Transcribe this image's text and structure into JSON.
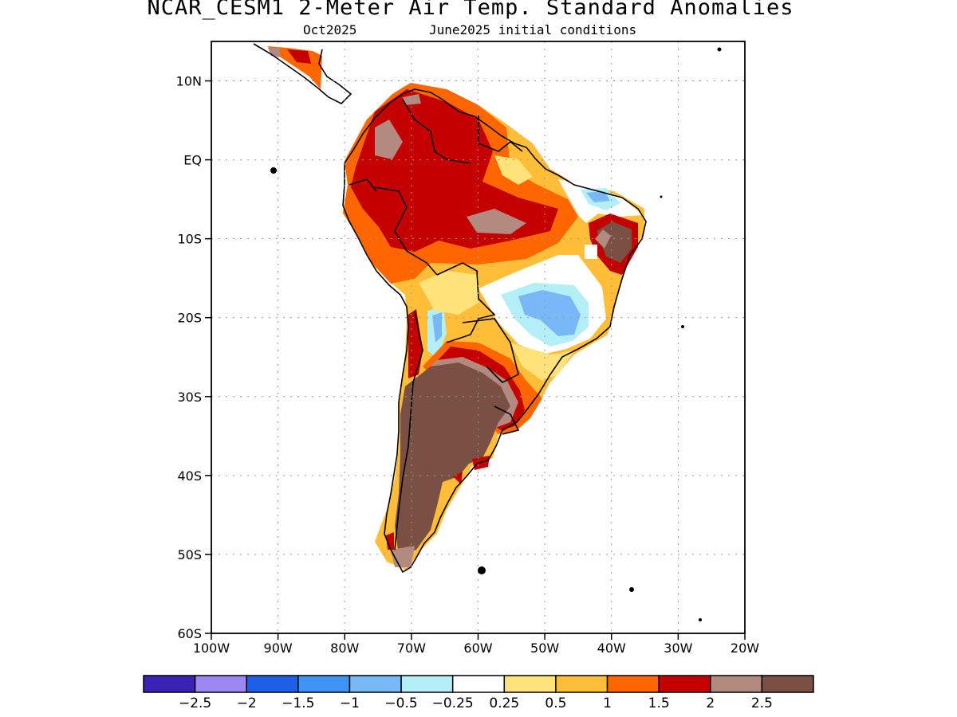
{
  "title": "NCAR_CESM1 2-Meter Air Temp. Standard Anomalies",
  "subtitle_month": "Oct2025",
  "subtitle_init": "June2025 initial conditions",
  "map": {
    "lon_range": [
      -100,
      -20
    ],
    "lat_range": [
      -60,
      15
    ],
    "lat_ticks": [
      "10N",
      "EQ",
      "10S",
      "20S",
      "30S",
      "40S",
      "50S",
      "60S"
    ],
    "lon_ticks": [
      "100W",
      "90W",
      "80W",
      "70W",
      "60W",
      "50W",
      "40W",
      "30W",
      "20W"
    ],
    "gridlines": true
  },
  "colorbar": {
    "colors": [
      "#3a22b4",
      "#9d87f5",
      "#1e5fe8",
      "#3d94f5",
      "#78b8f6",
      "#b4eef7",
      "#ffffff",
      "#ffe27a",
      "#ffbd38",
      "#ff6600",
      "#c40000",
      "#b38a7f",
      "#7a5044"
    ],
    "labels": [
      "-2.5",
      "-2",
      "-1.5",
      "-1",
      "-0.5",
      "-0.25",
      "0.25",
      "0.5",
      "1",
      "1.5",
      "2",
      "2.5"
    ]
  }
}
